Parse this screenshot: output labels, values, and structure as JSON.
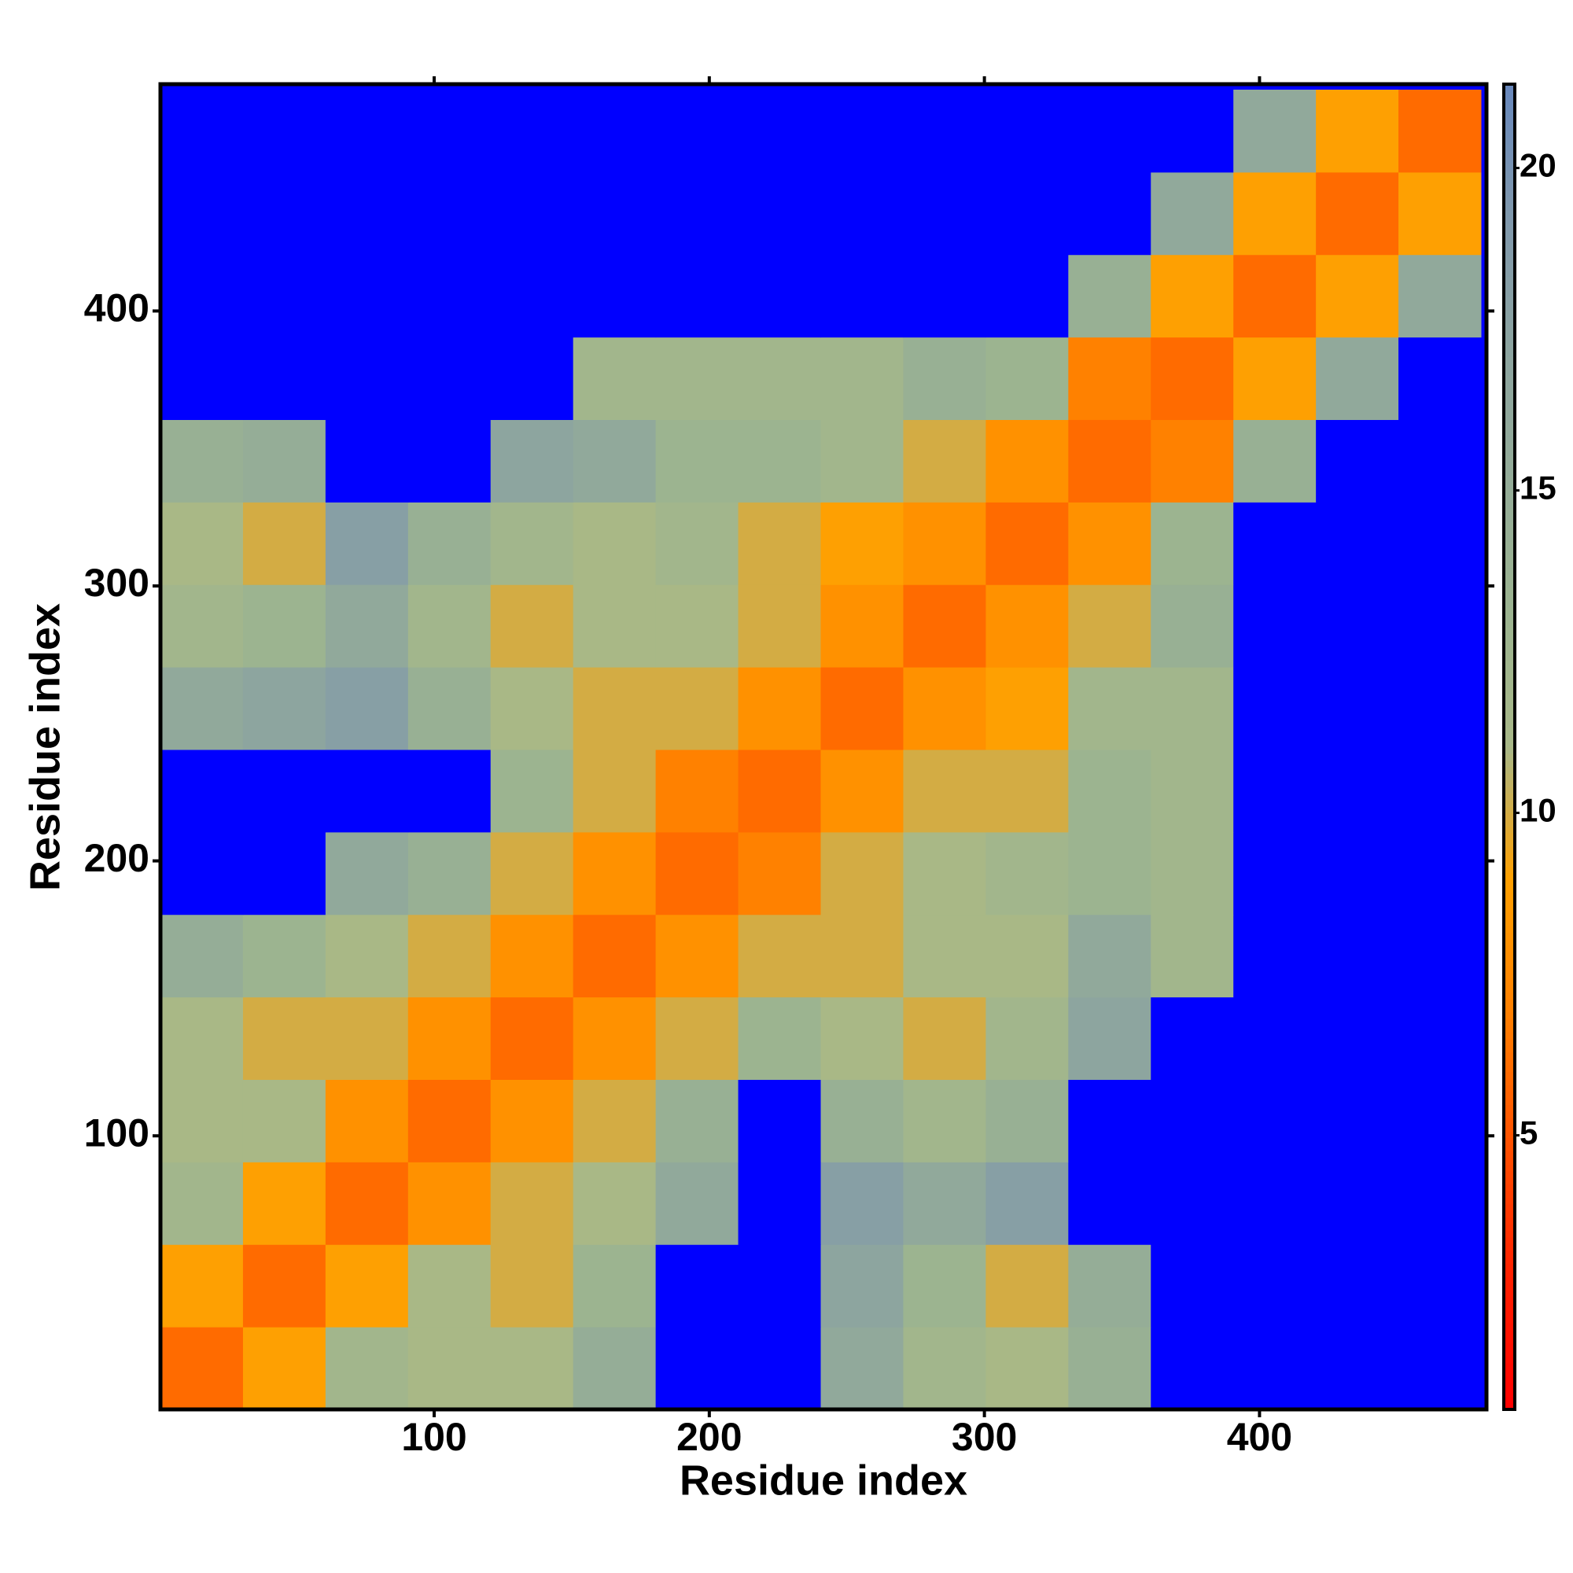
{
  "chart_data": {
    "type": "heatmap",
    "xlabel": "Residue index",
    "ylabel": "Residue index",
    "bins": [
      0.5,
      30.5,
      60.5,
      90.5,
      120.5,
      150.5,
      180.5,
      210.5,
      240.5,
      270.5,
      300.5,
      330.5,
      360.5,
      390.5,
      420.5,
      450.5,
      480.5
    ],
    "z": [
      [
        6,
        9,
        12,
        11,
        11,
        15,
        25,
        25,
        16,
        12,
        11,
        14,
        25,
        25,
        25,
        25
      ],
      [
        9,
        6,
        9,
        11,
        10,
        13,
        25,
        25,
        17,
        13,
        10,
        15,
        25,
        25,
        25,
        25
      ],
      [
        12,
        9,
        6,
        8,
        10,
        11,
        16,
        25,
        18,
        16,
        18,
        25,
        25,
        25,
        25,
        25
      ],
      [
        11,
        11,
        8,
        6,
        8,
        10,
        14,
        25,
        14,
        12,
        14,
        25,
        25,
        25,
        25,
        25
      ],
      [
        11,
        10,
        10,
        8,
        6,
        8,
        10,
        13,
        11,
        10,
        12,
        17,
        25,
        25,
        25,
        25
      ],
      [
        15,
        13,
        11,
        10,
        8,
        6,
        8,
        10,
        10,
        11,
        11,
        16,
        12,
        25,
        25,
        25
      ],
      [
        25,
        25,
        16,
        14,
        10,
        8,
        6,
        7,
        10,
        11,
        12,
        13,
        12,
        25,
        25,
        25
      ],
      [
        25,
        25,
        25,
        25,
        13,
        10,
        7,
        6,
        8,
        10,
        10,
        13,
        12,
        25,
        25,
        25
      ],
      [
        16,
        17,
        18,
        14,
        11,
        10,
        10,
        8,
        6,
        8,
        9,
        12,
        12,
        25,
        25,
        25
      ],
      [
        12,
        13,
        16,
        12,
        10,
        11,
        11,
        10,
        8,
        6,
        8,
        10,
        14,
        25,
        25,
        25
      ],
      [
        11,
        10,
        18,
        14,
        12,
        11,
        12,
        10,
        9,
        8,
        6,
        8,
        13,
        25,
        25,
        25
      ],
      [
        14,
        15,
        25,
        25,
        17,
        16,
        13,
        13,
        12,
        10,
        8,
        6,
        7,
        14,
        25,
        25
      ],
      [
        25,
        25,
        25,
        25,
        25,
        12,
        12,
        12,
        12,
        14,
        13,
        7,
        6,
        9,
        16,
        25
      ],
      [
        25,
        25,
        25,
        25,
        25,
        25,
        25,
        25,
        25,
        25,
        25,
        14,
        9,
        6,
        9,
        16
      ],
      [
        25,
        25,
        25,
        25,
        25,
        25,
        25,
        25,
        25,
        25,
        25,
        25,
        16,
        9,
        6,
        9
      ],
      [
        25,
        25,
        25,
        25,
        25,
        25,
        25,
        25,
        25,
        25,
        25,
        25,
        25,
        16,
        9,
        6
      ]
    ],
    "xlim": [
      0.5,
      482.5
    ],
    "ylim": [
      0.5,
      482.5
    ],
    "xticks": [
      100,
      200,
      300,
      400
    ],
    "yticks": [
      100,
      200,
      300,
      400
    ],
    "clim": [
      0.75,
      21.3
    ],
    "cticks": [
      5,
      10,
      15,
      20
    ],
    "colorscale": [
      "#ff0000",
      "#ff2000",
      "#ff5000",
      "#ff8000",
      "#ffa000",
      "#a8b888",
      "#9cb490",
      "#94ac98",
      "#8ca4a0",
      "#8098ac",
      "#6888bc"
    ],
    "over_color": "#0000ff"
  }
}
